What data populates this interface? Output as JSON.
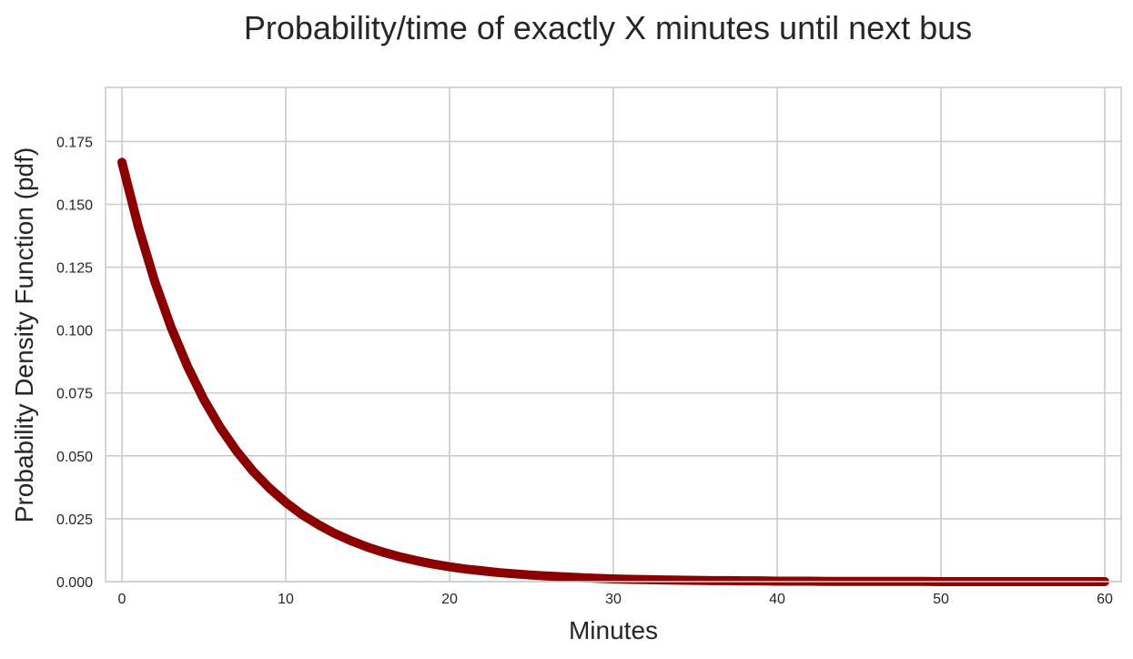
{
  "chart_data": {
    "type": "line",
    "title": "Probability/time of exactly X minutes until next bus",
    "xlabel": "Minutes",
    "ylabel": "Probability Density Function (pdf)",
    "xlim": [
      -1,
      61
    ],
    "ylim": [
      0,
      0.1965
    ],
    "x_ticks": [
      0,
      10,
      20,
      30,
      40,
      50,
      60
    ],
    "x_tick_labels": [
      "0",
      "10",
      "20",
      "30",
      "40",
      "50",
      "60"
    ],
    "y_ticks": [
      0,
      0.025,
      0.05,
      0.075,
      0.1,
      0.125,
      0.15,
      0.175
    ],
    "y_tick_labels": [
      "0.000",
      "0.025",
      "0.050",
      "0.075",
      "0.100",
      "0.125",
      "0.150",
      "0.175"
    ],
    "grid": true,
    "series": [
      {
        "color": "#8b0000",
        "x": [
          0,
          1,
          2,
          3,
          4,
          5,
          6,
          7,
          8,
          9,
          10,
          11,
          12,
          13,
          14,
          15,
          16,
          17,
          18,
          19,
          20,
          21,
          22,
          23,
          24,
          25,
          26,
          27,
          28,
          29,
          30,
          31,
          32,
          33,
          34,
          35,
          36,
          37,
          38,
          39,
          40,
          41,
          42,
          43,
          44,
          45,
          46,
          47,
          48,
          49,
          50,
          51,
          52,
          53,
          54,
          55,
          56,
          57,
          58,
          59,
          60
        ],
        "y": [
          0.1667,
          0.1411,
          0.1194,
          0.1011,
          0.0856,
          0.0724,
          0.0613,
          0.0519,
          0.0439,
          0.0372,
          0.0315,
          0.0266,
          0.0226,
          0.0191,
          0.0162,
          0.0137,
          0.0116,
          0.0098,
          0.0083,
          0.007,
          0.0059,
          0.005,
          0.0043,
          0.0036,
          0.0031,
          0.0026,
          0.0022,
          0.0019,
          0.0016,
          0.0013,
          0.0011,
          0.0009,
          0.0008,
          0.0007,
          0.0006,
          0.0005,
          0.0004,
          0.0004,
          0.0003,
          0.0003,
          0.0002,
          0.0002,
          0.0002,
          0.0001,
          0.0001,
          0.0001,
          0.0001,
          0.0001,
          0.0001,
          0.0001,
          0.0,
          0.0,
          0.0,
          0.0,
          0.0,
          0.0,
          0.0,
          0.0,
          0.0,
          0.0,
          0.0
        ]
      }
    ]
  }
}
